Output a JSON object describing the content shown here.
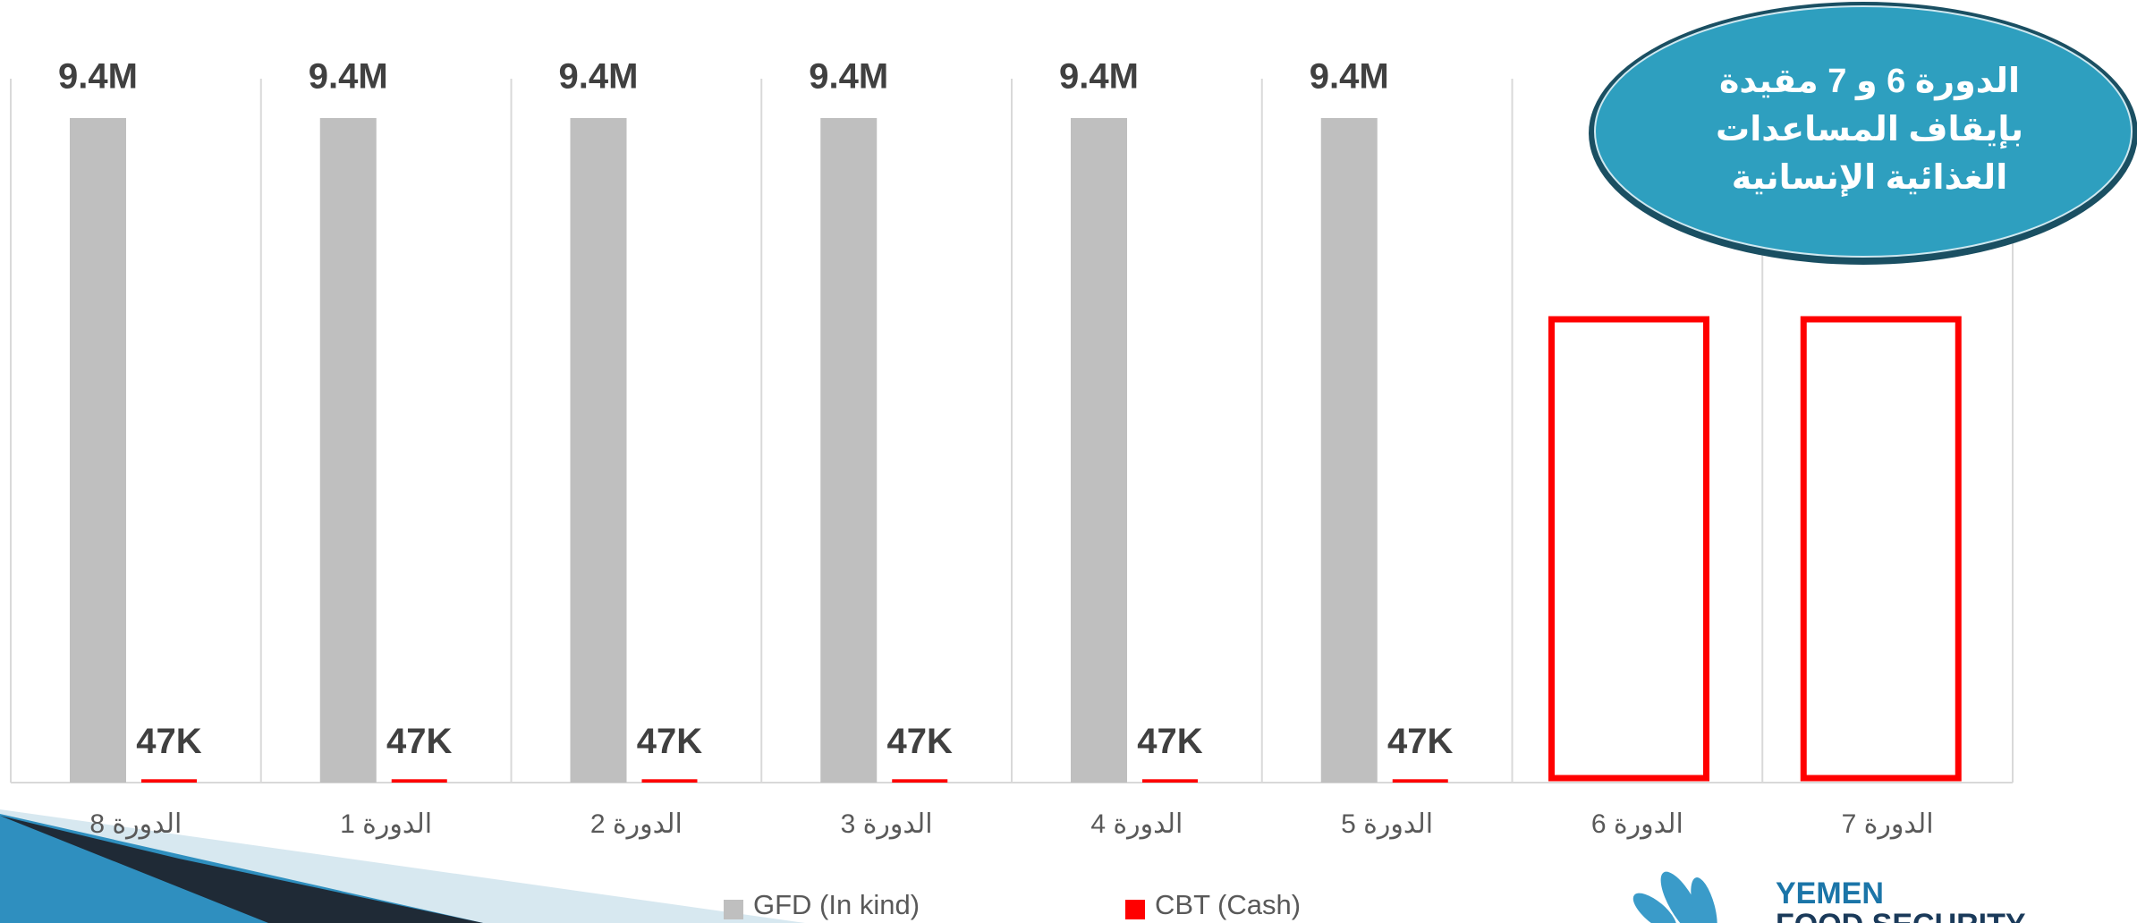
{
  "chart_data": {
    "type": "bar",
    "categories": [
      "الدورة 8",
      "الدورة 1",
      "الدورة 2",
      "الدورة 3",
      "الدورة 4",
      "الدورة 5",
      "الدورة 6",
      "الدورة 7"
    ],
    "series": [
      {
        "name": "GFD (In kind)",
        "color": "#bfbfbf",
        "values": [
          9400000,
          9400000,
          9400000,
          9400000,
          9400000,
          9400000,
          null,
          null
        ],
        "value_labels": [
          "9.4M",
          "9.4M",
          "9.4M",
          "9.4M",
          "9.4M",
          "9.4M",
          null,
          null
        ]
      },
      {
        "name": "CBT (Cash)",
        "color": "#ff0000",
        "values": [
          47000,
          47000,
          47000,
          47000,
          47000,
          47000,
          null,
          null
        ],
        "value_labels": [
          "47K",
          "47K",
          "47K",
          "47K",
          "47K",
          "47K",
          null,
          null
        ]
      }
    ],
    "annotation": {
      "lines": [
        "الدورة 6 و 7 مقيدة",
        "بإيقاف المساعدات",
        "الغذائية الإنسانية"
      ]
    },
    "grid": true
  },
  "logo": {
    "lines": [
      "YEMEN",
      "FOOD SECURITY"
    ]
  }
}
